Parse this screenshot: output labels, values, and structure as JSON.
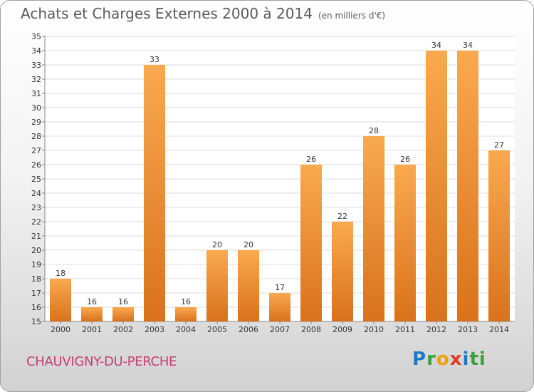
{
  "header": {
    "title": "Achats et Charges Externes 2000 à 2014",
    "unit": "(en milliers d'€)"
  },
  "footer": {
    "town": "CHAUVIGNY-DU-PERCHE",
    "logo": [
      "P",
      "r",
      "o",
      "x",
      "i",
      "ti"
    ]
  },
  "colors": {
    "bar_light": "#f9a94f",
    "bar_dark": "#d9721c",
    "town": "#c83c78"
  },
  "chart_data": {
    "type": "bar",
    "title": "Achats et Charges Externes 2000 à 2014",
    "subtitle": "(en milliers d'€)",
    "categories": [
      "2000",
      "2001",
      "2002",
      "2003",
      "2004",
      "2005",
      "2006",
      "2007",
      "2008",
      "2009",
      "2010",
      "2011",
      "2012",
      "2013",
      "2014"
    ],
    "values": [
      18,
      16,
      16,
      33,
      16,
      20,
      20,
      17,
      26,
      22,
      28,
      26,
      34,
      34,
      27
    ],
    "ylim": [
      15,
      35
    ],
    "ytick_step": 1,
    "grid": true,
    "legend": "none"
  }
}
